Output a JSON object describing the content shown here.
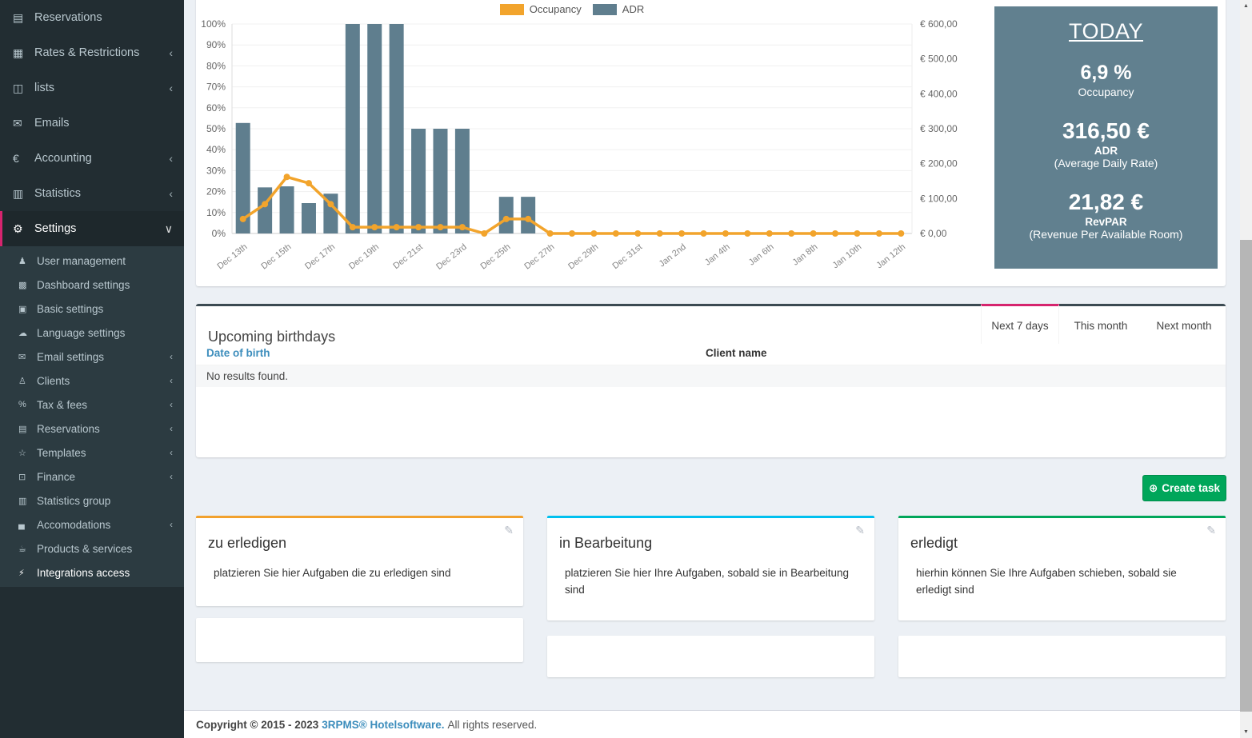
{
  "sidebar": {
    "items": [
      {
        "label": "Reservations",
        "icon": "file-icon",
        "chevron": null,
        "active": false
      },
      {
        "label": "Rates & Restrictions",
        "icon": "table-icon",
        "chevron": "left",
        "active": false
      },
      {
        "label": "lists",
        "icon": "book-icon",
        "chevron": "left",
        "active": false
      },
      {
        "label": "Emails",
        "icon": "envelope-icon",
        "chevron": null,
        "active": false
      },
      {
        "label": "Accounting",
        "icon": "euro-icon",
        "chevron": "left",
        "active": false
      },
      {
        "label": "Statistics",
        "icon": "bar-chart-icon",
        "chevron": "left",
        "active": false
      },
      {
        "label": "Settings",
        "icon": "gears-icon",
        "chevron": "down",
        "active": true
      }
    ],
    "settings_submenu": [
      {
        "label": "User management",
        "icon": "user-lock-icon",
        "chevron": null,
        "bright": false
      },
      {
        "label": "Dashboard settings",
        "icon": "qrcode-icon",
        "chevron": null,
        "bright": false
      },
      {
        "label": "Basic settings",
        "icon": "building-icon",
        "chevron": null,
        "bright": false
      },
      {
        "label": "Language settings",
        "icon": "speech-bubble-icon",
        "chevron": null,
        "bright": false
      },
      {
        "label": "Email settings",
        "icon": "envelope-icon",
        "chevron": "left",
        "bright": false
      },
      {
        "label": "Clients",
        "icon": "user-icon",
        "chevron": "left",
        "bright": false
      },
      {
        "label": "Tax & fees",
        "icon": "percent-icon",
        "chevron": "left",
        "bright": false
      },
      {
        "label": "Reservations",
        "icon": "file-icon",
        "chevron": "left",
        "bright": false
      },
      {
        "label": "Templates",
        "icon": "star-icon",
        "chevron": "left",
        "bright": false
      },
      {
        "label": "Finance",
        "icon": "money-icon",
        "chevron": "left",
        "bright": false
      },
      {
        "label": "Statistics group",
        "icon": "bar-chart-icon",
        "chevron": null,
        "bright": false
      },
      {
        "label": "Accomodations",
        "icon": "bed-icon",
        "chevron": "left",
        "bright": false
      },
      {
        "label": "Products & services",
        "icon": "products-icon",
        "chevron": null,
        "bright": false
      },
      {
        "label": "Integrations access",
        "icon": "plug-icon",
        "chevron": null,
        "bright": true
      }
    ]
  },
  "chart_data": {
    "type": "bar+line",
    "x": [
      "Dec 13th",
      "Dec 14th",
      "Dec 15th",
      "Dec 16th",
      "Dec 17th",
      "Dec 18th",
      "Dec 19th",
      "Dec 20th",
      "Dec 21st",
      "Dec 22nd",
      "Dec 23rd",
      "Dec 24th",
      "Dec 25th",
      "Dec 26th",
      "Dec 27th",
      "Dec 28th",
      "Dec 29th",
      "Dec 30th",
      "Dec 31st",
      "Jan 1st",
      "Jan 2nd",
      "Jan 3rd",
      "Jan 4th",
      "Jan 5th",
      "Jan 6th",
      "Jan 7th",
      "Jan 8th",
      "Jan 9th",
      "Jan 10th",
      "Jan 11th",
      "Jan 12th"
    ],
    "x_tick_step": 2,
    "series": [
      {
        "name": "Occupancy",
        "type": "line",
        "axis": "left",
        "unit": "%",
        "color": "#f2a42c",
        "values": [
          6.9,
          14,
          27,
          24,
          14,
          3,
          3,
          3,
          3,
          3,
          3,
          0,
          6.9,
          6.9,
          0,
          0,
          0,
          0,
          0,
          0,
          0,
          0,
          0,
          0,
          0,
          0,
          0,
          0,
          0,
          0,
          0
        ]
      },
      {
        "name": "ADR",
        "type": "bar",
        "axis": "right",
        "unit": "EUR",
        "color": "#5f7e8e",
        "values": [
          316.5,
          132,
          135,
          87,
          114,
          600,
          600,
          600,
          300,
          300,
          300,
          0,
          105,
          105,
          0,
          0,
          0,
          0,
          0,
          0,
          0,
          0,
          0,
          0,
          0,
          0,
          0,
          0,
          0,
          0,
          0
        ]
      }
    ],
    "left_axis": {
      "min": 0,
      "max": 100,
      "step": 10,
      "tick_suffix": "%"
    },
    "right_axis": {
      "min": 0,
      "max": 600,
      "step": 100,
      "tick_prefix": "€ ",
      "tick_suffix": ",00"
    },
    "grid": true,
    "legend_position": "top"
  },
  "today": {
    "title": "TODAY",
    "occupancy_value": "6,9 %",
    "occupancy_label": "Occupancy",
    "adr_value": "316,50 €",
    "adr_label": "ADR",
    "adr_sublabel": "(Average Daily Rate)",
    "revpar_value": "21,82 €",
    "revpar_label": "RevPAR",
    "revpar_sublabel": "(Revenue Per Available Room)"
  },
  "birthdays": {
    "title": "Upcoming birthdays",
    "tabs": [
      {
        "label": "Next 7 days",
        "active": true
      },
      {
        "label": "This month",
        "active": false
      },
      {
        "label": "Next month",
        "active": false
      }
    ],
    "columns": [
      "Date of birth",
      "Client name"
    ],
    "empty_text": "No results found."
  },
  "tasks": {
    "create_label": "Create task",
    "create_icon": "plus-circle-icon",
    "columns": [
      {
        "title": "zu erledigen",
        "description": "platzieren Sie hier Aufgaben die zu erledigen sind",
        "accent": "#f2a12d"
      },
      {
        "title": "in Bearbeitung",
        "description": "platzieren Sie hier Ihre Aufgaben, sobald sie in Bearbeitung sind",
        "accent": "#00c0ef"
      },
      {
        "title": "erledigt",
        "description": "hierhin können Sie Ihre Aufgaben schieben, sobald sie erledigt sind",
        "accent": "#00a65a"
      }
    ]
  },
  "footer": {
    "copyright": "Copyright © 2015 - 2023",
    "brand": "3RPMS® Hotelsoftware.",
    "rights": "All rights reserved."
  },
  "colors": {
    "accent_pink": "#d6246e",
    "link_blue": "#3c8dbc",
    "sidebar_bg": "#222d32",
    "sidebar_submenu_bg": "#2c3b41",
    "today_panel": "#61808f",
    "orange": "#f2a42c",
    "slate_bar": "#5f7e8e",
    "green": "#00a65a",
    "cyan": "#00c0ef",
    "card_top_dark": "#3b4a52"
  }
}
